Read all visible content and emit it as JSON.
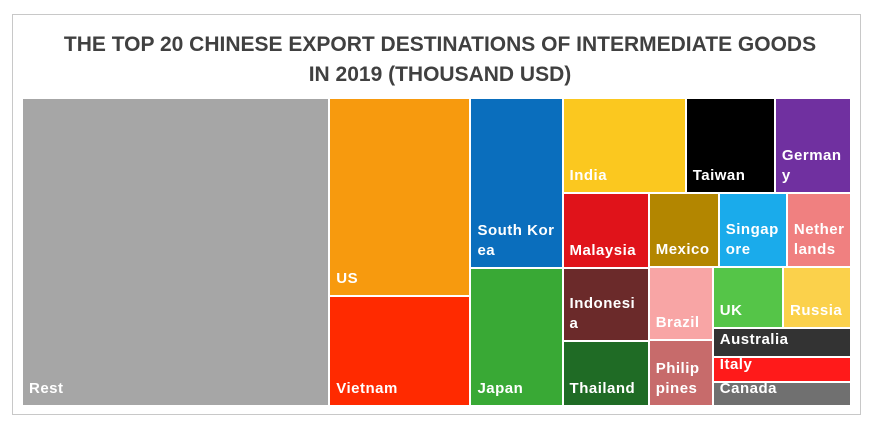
{
  "chart_data": {
    "type": "treemap",
    "title": "THE TOP 20 CHINESE EXPORT DESTINATIONS OF INTERMEDIATE GOODS IN 2019 (THOUSAND USD)",
    "categories": [
      "Rest",
      "US",
      "Vietnam",
      "South Korea",
      "Japan",
      "India",
      "Taiwan",
      "Germany",
      "Malaysia",
      "Indonesia",
      "Thailand",
      "Mexico",
      "Singapore",
      "Netherlands",
      "Brazil",
      "Philippines",
      "UK",
      "Russia",
      "Australia",
      "Italy",
      "Canada"
    ],
    "values": [
      472800000,
      139600000,
      77600000,
      78200000,
      63500000,
      58400000,
      42300000,
      36100000,
      32300000,
      31400000,
      28000000,
      25900000,
      25200000,
      23700000,
      23400000,
      21100000,
      21400000,
      20700000,
      20300000,
      16800000,
      16800000
    ],
    "colors": [
      "#a6a6a6",
      "#f79a0e",
      "#ff2a00",
      "#0a6ebd",
      "#39a935",
      "#fbc81f",
      "#000000",
      "#7030a0",
      "#e0131a",
      "#6b2a2a",
      "#1f6b25",
      "#b38600",
      "#1aabeb",
      "#f08080",
      "#f8a5a5",
      "#c76b6b",
      "#55c548",
      "#fbd14b",
      "#333333",
      "#ff1a1a",
      "#707070"
    ]
  }
}
